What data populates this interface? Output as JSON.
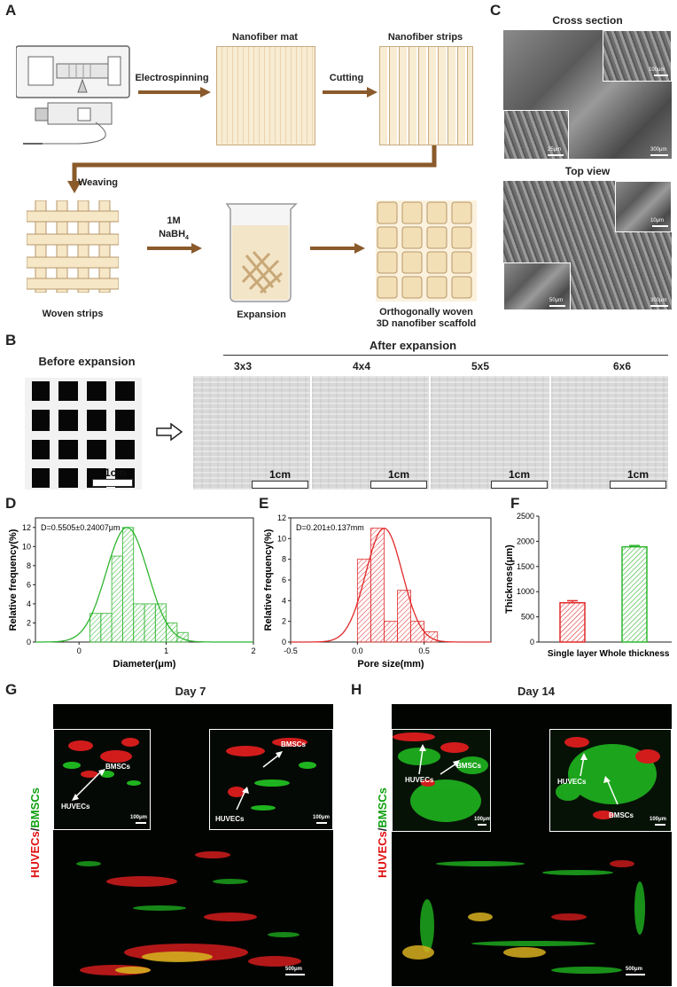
{
  "panels": {
    "A": {
      "label": "A",
      "captions": {
        "mat": "Nanofiber mat",
        "strips": "Nanofiber strips",
        "electrospinning": "Electrospinning",
        "cutting": "Cutting",
        "weaving": "Weaving",
        "woven": "Woven strips",
        "nabh_line1": "1M",
        "nabh_line2": "NaBH",
        "nabh_sub": "4",
        "expansion": "Expansion",
        "ortho1": "Orthogonally woven",
        "ortho2": "3D nanofiber scaffold"
      }
    },
    "B": {
      "label": "B",
      "before": "Before expansion",
      "after": "After expansion",
      "sizes": [
        "3x3",
        "4x4",
        "5x5",
        "6x6"
      ],
      "scale": "1cm"
    },
    "C": {
      "label": "C",
      "cross": "Cross section",
      "top": "Top view",
      "scales": [
        "100μm",
        "25μm",
        "300μm",
        "10μm",
        "50μm",
        "300μm"
      ]
    },
    "G": {
      "label": "G",
      "title": "Day 7",
      "ylabel_red": "HUVECs",
      "ylabel_slash": "/",
      "ylabel_green": "BMSCs",
      "cells": [
        "BMSCs",
        "HUVECs",
        "BMSCs",
        "HUVECs"
      ],
      "inset_scale": "100μm",
      "main_scale": "500μm"
    },
    "H": {
      "label": "H",
      "title": "Day 14",
      "ylabel_red": "HUVECs",
      "ylabel_slash": "/",
      "ylabel_green": "BMSCs",
      "cells": [
        "HUVECs",
        "BMSCs",
        "HUVECs",
        "BMSCs"
      ],
      "inset_scale": "100μm",
      "main_scale": "500μm"
    }
  },
  "chart_data": [
    {
      "panel": "D",
      "type": "bar",
      "annotation": "D=0.5505±0.24007μm",
      "xlabel": "Diameter(μm)",
      "ylabel": "Relative frequency(%)",
      "xlim": [
        -0.5,
        2
      ],
      "ylim": [
        0,
        13
      ],
      "xticks": [
        0,
        1,
        2
      ],
      "yticks": [
        0,
        2,
        4,
        6,
        8,
        10,
        12
      ],
      "bin_width": 0.125,
      "bins_start": [
        0.125,
        0.25,
        0.375,
        0.5,
        0.625,
        0.75,
        0.875,
        1.0,
        1.125
      ],
      "values": [
        3,
        3,
        9,
        12,
        4,
        4,
        4,
        2,
        1
      ],
      "fit": {
        "mean": 0.55,
        "sd": 0.24,
        "peak": 12
      },
      "color": "#2fb52f"
    },
    {
      "panel": "E",
      "type": "bar",
      "annotation": "D=0.201±0.137mm",
      "xlabel": "Pore size(mm)",
      "ylabel": "Relative frequency(%)",
      "xlim": [
        -0.5,
        1.0
      ],
      "ylim": [
        0,
        12
      ],
      "xticks": [
        -0.5,
        0.0,
        0.5
      ],
      "xtick_labels": [
        "-0.5",
        "0.0",
        "0.5"
      ],
      "yticks": [
        0,
        2,
        4,
        6,
        8,
        10,
        12
      ],
      "bin_width": 0.1,
      "bins_start": [
        0.0,
        0.1,
        0.2,
        0.3,
        0.4,
        0.5
      ],
      "values": [
        8,
        11,
        2,
        5,
        2,
        1
      ],
      "fit": {
        "mean": 0.2,
        "sd": 0.137,
        "peak": 11
      },
      "color": "#e02a2a"
    },
    {
      "panel": "F",
      "type": "bar",
      "categories": [
        "Single layer",
        "Whole thickness"
      ],
      "values": [
        780,
        1890
      ],
      "errors": [
        40,
        25
      ],
      "ylabel": "Thickness(μm)",
      "ylim": [
        0,
        2500
      ],
      "yticks": [
        0,
        500,
        1000,
        1500,
        2000,
        2500
      ],
      "colors": [
        "#e02a2a",
        "#2fb52f"
      ]
    }
  ]
}
